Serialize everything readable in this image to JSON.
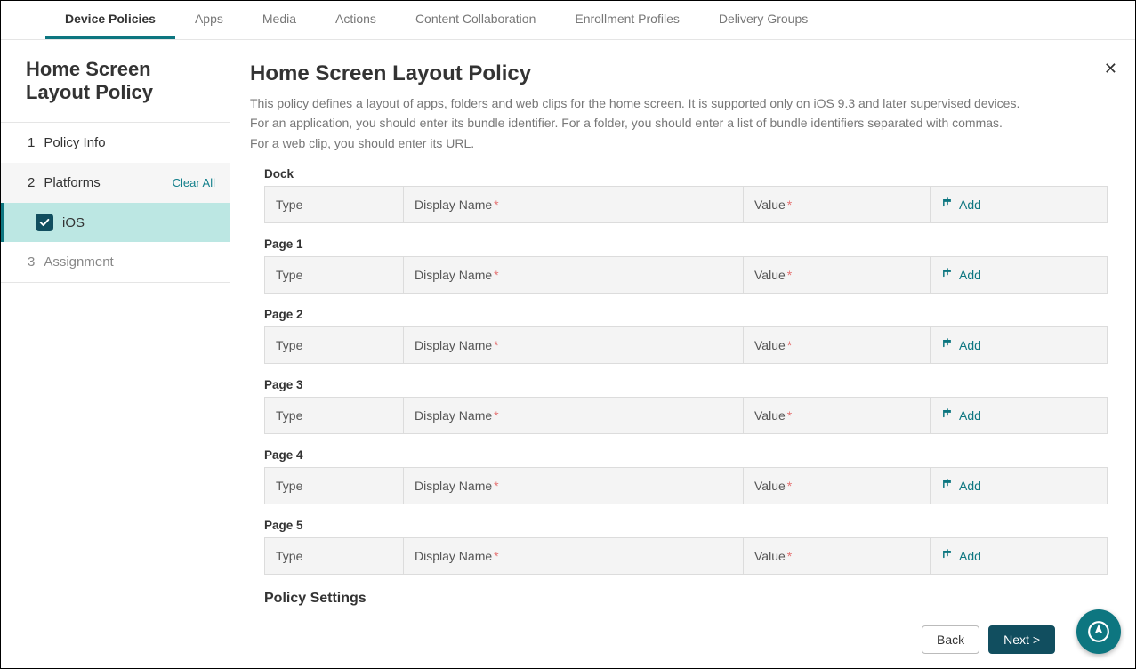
{
  "topnav": {
    "items": [
      {
        "label": "Device Policies",
        "active": true
      },
      {
        "label": "Apps"
      },
      {
        "label": "Media"
      },
      {
        "label": "Actions"
      },
      {
        "label": "Content Collaboration"
      },
      {
        "label": "Enrollment Profiles"
      },
      {
        "label": "Delivery Groups"
      }
    ]
  },
  "sidebar": {
    "title": "Home Screen Layout Policy",
    "steps": {
      "policy_info": {
        "num": "1",
        "label": "Policy Info"
      },
      "platforms": {
        "num": "2",
        "label": "Platforms",
        "clear_all": "Clear All"
      },
      "ios": {
        "label": "iOS"
      },
      "assignment": {
        "num": "3",
        "label": "Assignment"
      }
    }
  },
  "main": {
    "title": "Home Screen Layout Policy",
    "desc_l1": "This policy defines a layout of apps, folders and web clips for the home screen. It is supported only on iOS 9.3 and later supervised devices.",
    "desc_l2": "For an application, you should enter its bundle identifier. For a folder, you should enter a list of bundle identifiers separated with commas.",
    "desc_l3": "For a web clip, you should enter its URL.",
    "headers": {
      "type": "Type",
      "display_name": "Display Name",
      "value": "Value",
      "add": "Add",
      "required_marker": "*"
    },
    "sections": [
      {
        "title": "Dock"
      },
      {
        "title": "Page 1"
      },
      {
        "title": "Page 2"
      },
      {
        "title": "Page 3"
      },
      {
        "title": "Page 4"
      },
      {
        "title": "Page 5"
      }
    ],
    "policy_settings_title": "Policy Settings"
  },
  "buttons": {
    "back": "Back",
    "next": "Next >"
  },
  "colors": {
    "accent": "#0d7680",
    "dark": "#114e5f",
    "sub_bg": "#bce7e3"
  }
}
